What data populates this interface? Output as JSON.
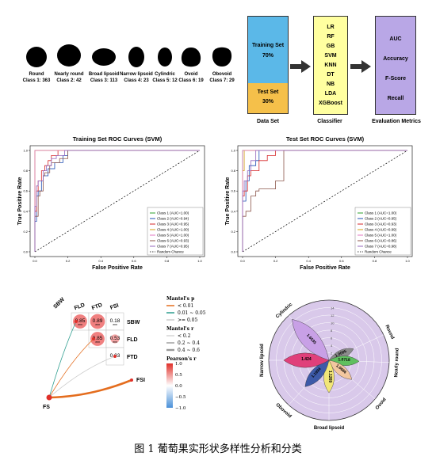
{
  "shapes": [
    {
      "name": "Round",
      "count": "Class 1: 363"
    },
    {
      "name": "Nearly round",
      "count": "Class 2: 42"
    },
    {
      "name": "Broad lipsoid",
      "count": "Class 3: 113"
    },
    {
      "name": "Narrow lipsoid",
      "count": "Class 4: 23"
    },
    {
      "name": "Cylindric",
      "count": "Class 5: 12"
    },
    {
      "name": "Ovoid",
      "count": "Class 6: 19"
    },
    {
      "name": "Obovoid",
      "count": "Class 7: 29"
    }
  ],
  "pipeline": {
    "training_set": "Training Set",
    "training_pct": "70%",
    "test_set": "Test Set",
    "test_pct": "30%",
    "dataset_label": "Data Set",
    "classifiers": [
      "LR",
      "RF",
      "GB",
      "SVM",
      "KNN",
      "DT",
      "NB",
      "LDA",
      "XGBoost"
    ],
    "classifier_label": "Classifier",
    "metrics": [
      "AUC",
      "Accuracy",
      "F-Score",
      "Recall"
    ],
    "metrics_label": "Evaluation Metrics",
    "colors": {
      "train": "#5bb8e8",
      "test": "#f5c04a",
      "clf": "#ffffa0",
      "metrics": "#b9a7e6"
    }
  },
  "chart_data": [
    {
      "type": "line",
      "title": "Training Set ROC Curves (SVM)",
      "xlabel": "False Positive Rate",
      "ylabel": "True Positive Rate",
      "xlim": [
        0,
        1
      ],
      "ylim": [
        0,
        1
      ],
      "xticks": [
        "0.0",
        "0.2",
        "0.4",
        "0.6",
        "0.8",
        "1.0"
      ],
      "yticks": [
        "0.0",
        "0.2",
        "0.4",
        "0.6",
        "0.8",
        "1.0"
      ],
      "legend_position": "bottom-right",
      "series": [
        {
          "name": "Class 1 (AUC=1.00)",
          "color": "#2ca02c",
          "points": [
            [
              0,
              0
            ],
            [
              0,
              0.97
            ],
            [
              0.01,
              1
            ],
            [
              1,
              1
            ]
          ]
        },
        {
          "name": "Class 2 (AUC=0.94)",
          "color": "#1f4fb4",
          "points": [
            [
              0,
              0
            ],
            [
              0.01,
              0.3
            ],
            [
              0.02,
              0.55
            ],
            [
              0.04,
              0.6
            ],
            [
              0.05,
              0.7
            ],
            [
              0.08,
              0.75
            ],
            [
              0.12,
              0.82
            ],
            [
              0.17,
              0.88
            ],
            [
              0.2,
              0.95
            ],
            [
              0.21,
              1
            ],
            [
              1,
              1
            ]
          ]
        },
        {
          "name": "Class 3 (AUC=0.95)",
          "color": "#d62728",
          "points": [
            [
              0,
              0
            ],
            [
              0.01,
              0.4
            ],
            [
              0.02,
              0.6
            ],
            [
              0.04,
              0.7
            ],
            [
              0.06,
              0.8
            ],
            [
              0.08,
              0.85
            ],
            [
              0.1,
              0.9
            ],
            [
              0.14,
              0.95
            ],
            [
              0.16,
              1
            ],
            [
              1,
              1
            ]
          ]
        },
        {
          "name": "Class 4 (AUC=1.00)",
          "color": "#d4a017",
          "points": [
            [
              0,
              0
            ],
            [
              0,
              0.95
            ],
            [
              0.005,
              1
            ],
            [
              1,
              1
            ]
          ]
        },
        {
          "name": "Class 5 (AUC=1.00)",
          "color": "#e377c2",
          "points": [
            [
              0,
              0
            ],
            [
              0,
              0.9
            ],
            [
              0.01,
              1
            ],
            [
              1,
              1
            ]
          ]
        },
        {
          "name": "Class 6 (AUC=0.93)",
          "color": "#8c564b",
          "points": [
            [
              0,
              0
            ],
            [
              0.02,
              0.35
            ],
            [
              0.03,
              0.55
            ],
            [
              0.05,
              0.6
            ],
            [
              0.06,
              0.75
            ],
            [
              0.09,
              0.78
            ],
            [
              0.1,
              0.85
            ],
            [
              0.15,
              0.88
            ],
            [
              0.2,
              0.92
            ],
            [
              0.22,
              1
            ],
            [
              1,
              1
            ]
          ]
        },
        {
          "name": "Class 7 (AUC=0.95)",
          "color": "#9467bd",
          "points": [
            [
              0,
              0
            ],
            [
              0.01,
              0.45
            ],
            [
              0.02,
              0.65
            ],
            [
              0.05,
              0.7
            ],
            [
              0.07,
              0.8
            ],
            [
              0.1,
              0.85
            ],
            [
              0.13,
              0.92
            ],
            [
              0.18,
              0.95
            ],
            [
              0.21,
              1
            ],
            [
              1,
              1
            ]
          ]
        }
      ],
      "reference": {
        "name": "Random Chance",
        "points": [
          [
            0,
            0
          ],
          [
            1,
            1
          ]
        ]
      }
    },
    {
      "type": "line",
      "title": "Test Set ROC Curves (SVM)",
      "xlabel": "False Positive Rate",
      "ylabel": "True Positive Rate",
      "xlim": [
        0,
        1
      ],
      "ylim": [
        0,
        1
      ],
      "xticks": [
        "0.0",
        "0.2",
        "0.4",
        "0.6",
        "0.8",
        "1.0"
      ],
      "yticks": [
        "0.0",
        "0.2",
        "0.4",
        "0.6",
        "0.8",
        "1.0"
      ],
      "legend_position": "bottom-right",
      "series": [
        {
          "name": "Class 1 (AUC=1.00)",
          "color": "#2ca02c",
          "points": [
            [
              0,
              0
            ],
            [
              0,
              0.97
            ],
            [
              0.01,
              1
            ],
            [
              1,
              1
            ]
          ]
        },
        {
          "name": "Class 2 (AUC=0.95)",
          "color": "#1f4fb4",
          "points": [
            [
              0,
              0
            ],
            [
              0.02,
              0.5
            ],
            [
              0.04,
              0.7
            ],
            [
              0.08,
              0.85
            ],
            [
              0.1,
              0.9
            ],
            [
              0.12,
              1
            ],
            [
              1,
              1
            ]
          ]
        },
        {
          "name": "Class 3 (AUC=0.93)",
          "color": "#d62728",
          "points": [
            [
              0,
              0
            ],
            [
              0.01,
              0.55
            ],
            [
              0.03,
              0.6
            ],
            [
              0.05,
              0.75
            ],
            [
              0.1,
              0.8
            ],
            [
              0.15,
              0.9
            ],
            [
              0.2,
              0.95
            ],
            [
              0.22,
              1
            ],
            [
              1,
              1
            ]
          ]
        },
        {
          "name": "Class 4 (AUC=0.99)",
          "color": "#d4a017",
          "points": [
            [
              0,
              0
            ],
            [
              0.01,
              0.8
            ],
            [
              0.03,
              1
            ],
            [
              1,
              1
            ]
          ]
        },
        {
          "name": "Class 5 (AUC=1.00)",
          "color": "#e377c2",
          "points": [
            [
              0,
              0
            ],
            [
              0,
              0.9
            ],
            [
              0.01,
              1
            ],
            [
              1,
              1
            ]
          ]
        },
        {
          "name": "Class 6 (AUC=0.86)",
          "color": "#8c564b",
          "points": [
            [
              0,
              0
            ],
            [
              0.02,
              0.35
            ],
            [
              0.05,
              0.4
            ],
            [
              0.08,
              0.55
            ],
            [
              0.1,
              0.6
            ],
            [
              0.2,
              0.62
            ],
            [
              0.25,
              0.7
            ],
            [
              0.3,
              1
            ],
            [
              1,
              1
            ]
          ]
        },
        {
          "name": "Class 7 (AUC=0.98)",
          "color": "#9467bd",
          "points": [
            [
              0,
              0
            ],
            [
              0.01,
              0.6
            ],
            [
              0.03,
              0.7
            ],
            [
              0.05,
              0.8
            ],
            [
              0.08,
              0.9
            ],
            [
              0.1,
              1
            ],
            [
              1,
              1
            ]
          ]
        }
      ],
      "reference": {
        "name": "Random Chance",
        "points": [
          [
            0,
            0
          ],
          [
            1,
            1
          ]
        ]
      }
    },
    {
      "type": "heatmap",
      "vars": [
        "SBW",
        "FLD",
        "FTD",
        "FSI"
      ],
      "cells": [
        {
          "row": "SBW",
          "col": "FLD",
          "r": 0.85,
          "label": "0.85",
          "stars": "***"
        },
        {
          "row": "SBW",
          "col": "FTD",
          "r": 0.89,
          "label": "0.89",
          "stars": "***"
        },
        {
          "row": "SBW",
          "col": "FSI",
          "r": 0.18,
          "label": "0.18",
          "stars": "***"
        },
        {
          "row": "FLD",
          "col": "FTD",
          "r": 0.85,
          "label": "0.85",
          "stars": "***"
        },
        {
          "row": "FLD",
          "col": "FSI",
          "r": 0.53,
          "label": "0.53",
          "stars": "***"
        },
        {
          "row": "FTD",
          "col": "FSI",
          "r": 0.03,
          "label": "0.03",
          "stars": ""
        }
      ],
      "mantel_target": "FS",
      "links": [
        {
          "to": "SBW",
          "p": "0.01 ~ 0.05",
          "r": "< 0.2"
        },
        {
          "to": "FLD",
          "p": "< 0.01",
          "r": "< 0.2"
        },
        {
          "to": "FTD",
          "p": ">= 0.05",
          "r": "< 0.2"
        },
        {
          "to": "FSI",
          "p": "< 0.01",
          "r": "0.4 ~ 0.6"
        }
      ],
      "legend": {
        "p_title": "Mantel's p",
        "p_items": [
          {
            "label": "< 0.01",
            "color": "#e46d1e"
          },
          {
            "label": "0.01 ~ 0.05",
            "color": "#2e9e8f"
          },
          {
            "label": ">= 0.05",
            "color": "#cccccc"
          }
        ],
        "r_title": "Mantel's r",
        "r_items": [
          "< 0.2",
          "0.2 ~ 0.4",
          "0.4 ~ 0.6"
        ],
        "pearson_title": "Pearson's r",
        "pearson_ticks": [
          "1.0",
          "0.5",
          "0.0",
          "−0.5",
          "−1.0"
        ]
      }
    },
    {
      "type": "polar-bar",
      "rticks": [
        "2",
        "4",
        "6",
        "8",
        "10",
        "12",
        "14"
      ],
      "rmax": 16,
      "categories": [
        {
          "name": "Round",
          "value": 1.0005,
          "color": "#8c8c8c"
        },
        {
          "name": "Nearly round",
          "value": 1.0718,
          "color": "#5fbf5f"
        },
        {
          "name": "Ovoid",
          "value": 1.0666,
          "color": "#f3c79f"
        },
        {
          "name": "Broad lipsoid",
          "value": 1.1269,
          "color": "#f2e678"
        },
        {
          "name": "Obovoid",
          "value": 1.1994,
          "color": "#3d5aa8"
        },
        {
          "name": "Narrow lipsoid",
          "value": 1.424,
          "color": "#e0407a"
        },
        {
          "name": "Cylindric",
          "value": 1.6535,
          "color": "#c8a0e6"
        }
      ]
    }
  ],
  "caption": "图 1  葡萄果实形状多样性分析和分类"
}
